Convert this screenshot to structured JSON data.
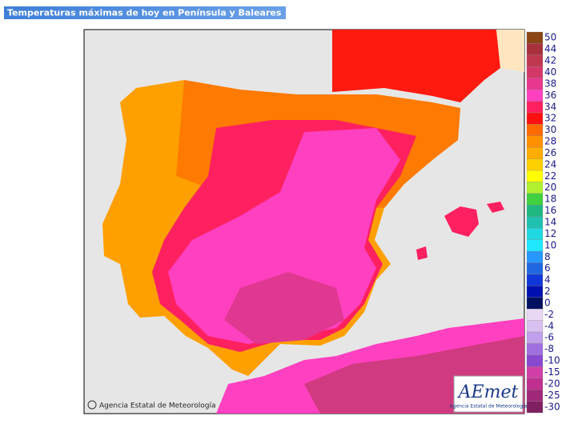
{
  "header": {
    "title": "Temperaturas máximas de hoy en Península y Baleares"
  },
  "credit": "Agencia Estatal de Meteorología",
  "logo": {
    "name": "AEmet",
    "subtitle": "Agencia Estatal de Meteorología"
  },
  "legend": [
    {
      "label": "50",
      "color": "#8b4513"
    },
    {
      "label": "44",
      "color": "#a8303c"
    },
    {
      "label": "42",
      "color": "#c03850"
    },
    {
      "label": "40",
      "color": "#d43868"
    },
    {
      "label": "38",
      "color": "#e83890"
    },
    {
      "label": "36",
      "color": "#ff40c0"
    },
    {
      "label": "34",
      "color": "#ff2060"
    },
    {
      "label": "32",
      "color": "#ff1010"
    },
    {
      "label": "30",
      "color": "#ff6a00"
    },
    {
      "label": "28",
      "color": "#ff9000"
    },
    {
      "label": "26",
      "color": "#ffae00"
    },
    {
      "label": "24",
      "color": "#ffd000"
    },
    {
      "label": "22",
      "color": "#ffff00"
    },
    {
      "label": "20",
      "color": "#b0f030"
    },
    {
      "label": "18",
      "color": "#40d040"
    },
    {
      "label": "16",
      "color": "#20b880"
    },
    {
      "label": "14",
      "color": "#20c0b0"
    },
    {
      "label": "12",
      "color": "#20d8e0"
    },
    {
      "label": "10",
      "color": "#20e8ff"
    },
    {
      "label": "8",
      "color": "#2898ff"
    },
    {
      "label": "6",
      "color": "#2068e0"
    },
    {
      "label": "4",
      "color": "#1038d8"
    },
    {
      "label": "2",
      "color": "#0010b0"
    },
    {
      "label": "0",
      "color": "#001060"
    },
    {
      "label": "-2",
      "color": "#e8d8f4"
    },
    {
      "label": "-4",
      "color": "#d8c0f0"
    },
    {
      "label": "-6",
      "color": "#c0a0ec"
    },
    {
      "label": "-8",
      "color": "#a070e0"
    },
    {
      "label": "-10",
      "color": "#8848d0"
    },
    {
      "label": "-15",
      "color": "#d040a8"
    },
    {
      "label": "-20",
      "color": "#c03090"
    },
    {
      "label": "-25",
      "color": "#a02878"
    },
    {
      "label": "-30",
      "color": "#802060"
    }
  ]
}
